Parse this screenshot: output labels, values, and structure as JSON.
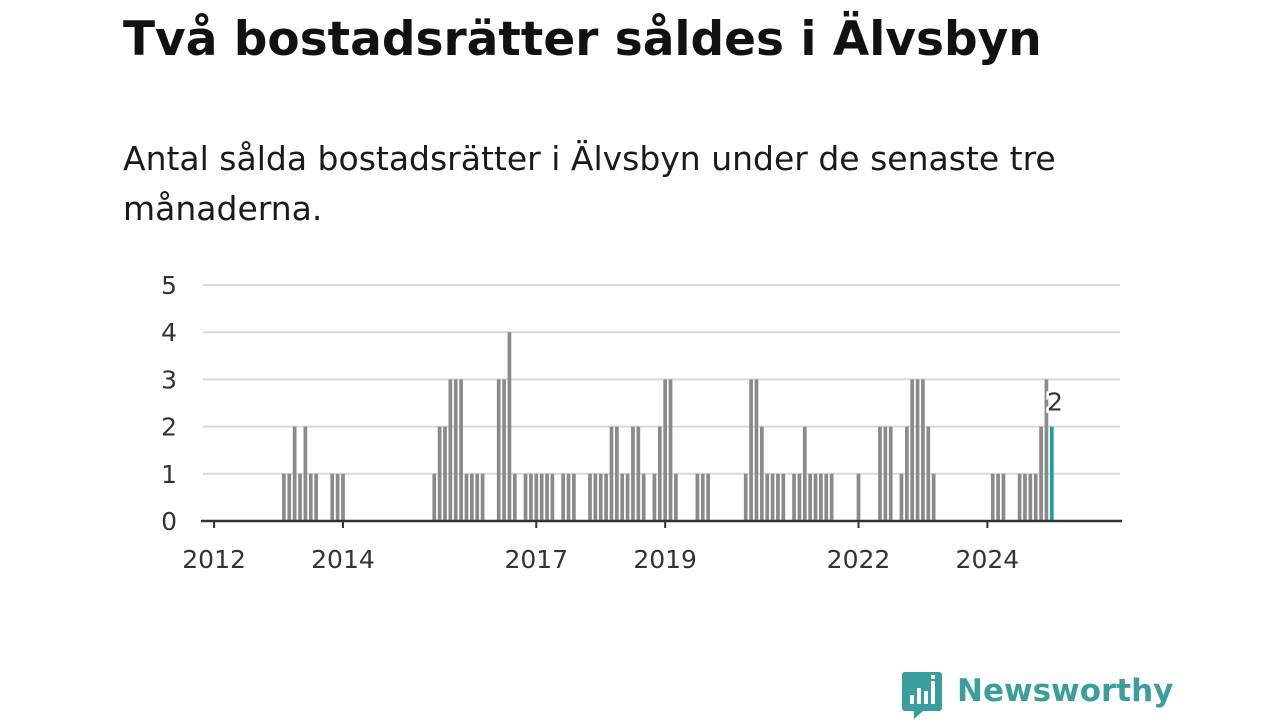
{
  "title": "Två bostadsrätter såldes i Älvsbyn",
  "subtitle": "Antal sålda bostadsrätter i Älvsbyn under de senaste tre månaderna.",
  "brand": {
    "name": "Newsworthy",
    "color": "#3a9e9c",
    "icon": "newsworthy-chart-bubble-icon"
  },
  "colors": {
    "bar": "#8a8a8a",
    "highlight": "#17a2a0",
    "grid": "#d9d9d9",
    "axis": "#333333"
  },
  "chart_data": {
    "type": "bar",
    "x_unit": "month",
    "start_month": "2011-11",
    "end_month": "2025-01",
    "xtick_labels": [
      "2012",
      "2014",
      "2017",
      "2019",
      "2022",
      "2024"
    ],
    "yticks": [
      0,
      1,
      2,
      3,
      4,
      5
    ],
    "ylim": [
      0,
      5
    ],
    "grid": true,
    "legend": "none",
    "highlight_index": 158,
    "highlight_label": "2",
    "values": [
      0,
      0,
      0,
      0,
      0,
      0,
      0,
      0,
      0,
      0,
      0,
      0,
      0,
      0,
      0,
      1,
      1,
      2,
      1,
      2,
      1,
      1,
      0,
      0,
      1,
      1,
      1,
      0,
      0,
      0,
      0,
      0,
      0,
      0,
      0,
      0,
      0,
      0,
      0,
      0,
      0,
      0,
      0,
      1,
      2,
      2,
      3,
      3,
      3,
      1,
      1,
      1,
      1,
      0,
      0,
      3,
      3,
      4,
      1,
      0,
      1,
      1,
      1,
      1,
      1,
      1,
      0,
      1,
      1,
      1,
      0,
      0,
      1,
      1,
      1,
      1,
      2,
      2,
      1,
      1,
      2,
      2,
      1,
      0,
      1,
      2,
      3,
      3,
      1,
      0,
      0,
      0,
      1,
      1,
      1,
      0,
      0,
      0,
      0,
      0,
      0,
      1,
      3,
      3,
      2,
      1,
      1,
      1,
      1,
      0,
      1,
      1,
      2,
      1,
      1,
      1,
      1,
      1,
      0,
      0,
      0,
      0,
      1,
      0,
      0,
      0,
      2,
      2,
      2,
      0,
      1,
      2,
      3,
      3,
      3,
      2,
      1,
      0,
      0,
      0,
      0,
      0,
      0,
      0,
      0,
      0,
      0,
      1,
      1,
      1,
      0,
      0,
      1,
      1,
      1,
      1,
      2,
      3,
      2
    ]
  }
}
